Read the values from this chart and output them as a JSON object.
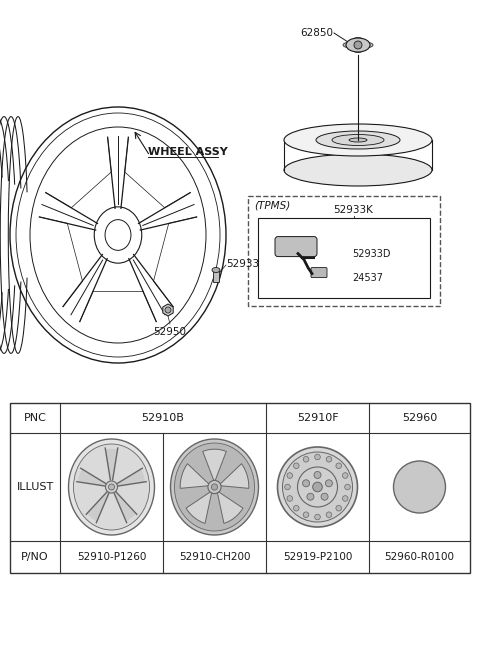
{
  "bg_color": "#ffffff",
  "colors": {
    "line": "#1a1a1a",
    "gray_light": "#d8d8d8",
    "gray_mid": "#b0b0b0",
    "gray_dark": "#888888",
    "table_border": "#333333",
    "wheel_edge": "#666666",
    "bg": "#ffffff"
  },
  "diagram": {
    "wheel_assy_label": "WHEEL ASSY",
    "part_62850": "62850",
    "part_52933": "52933",
    "part_52950": "52950",
    "tpms": "(TPMS)",
    "part_52933K": "52933K",
    "part_52933D": "52933D",
    "part_24537": "24537"
  },
  "table": {
    "pnc_row": [
      "PNC",
      "52910B",
      "52910F",
      "52960"
    ],
    "illust_row": "ILLUST",
    "pno_row": [
      "P/NO",
      "52910-P1260",
      "52910-CH200",
      "52919-P2100",
      "52960-R0100"
    ]
  }
}
